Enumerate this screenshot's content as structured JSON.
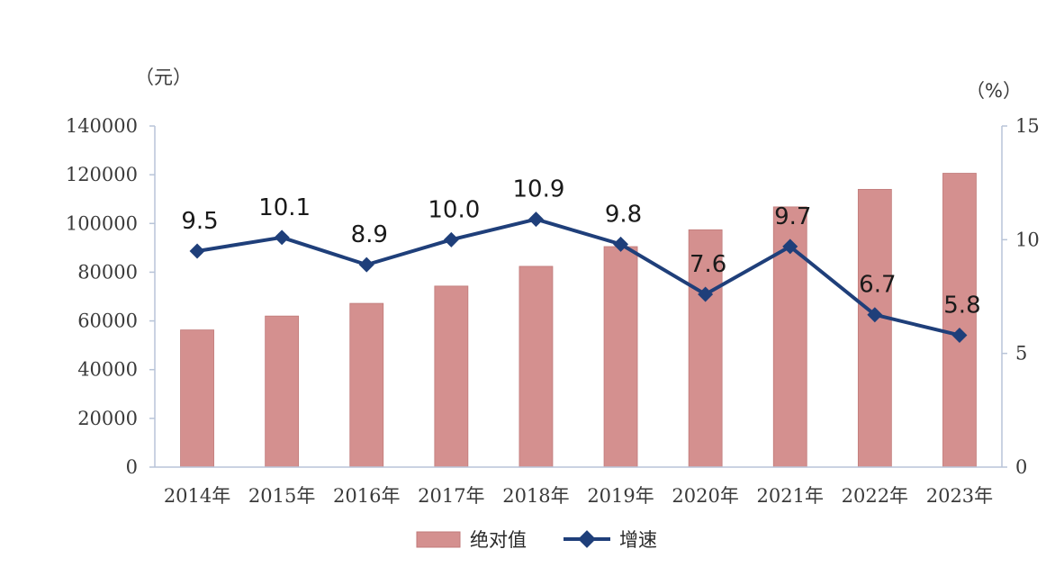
{
  "chart_data": {
    "type": "bar",
    "categories": [
      "2014年",
      "2015年",
      "2016年",
      "2017年",
      "2018年",
      "2019年",
      "2020年",
      "2021年",
      "2022年",
      "2023年"
    ],
    "series": [
      {
        "name": "绝对值",
        "type": "bar",
        "axis": "left",
        "values": [
          56300,
          62000,
          67200,
          74300,
          82400,
          90500,
          97400,
          106800,
          114000,
          120600
        ]
      },
      {
        "name": "增速",
        "type": "line",
        "axis": "right",
        "values": [
          9.5,
          10.1,
          8.9,
          10.0,
          10.9,
          9.8,
          7.6,
          9.7,
          6.7,
          5.8
        ],
        "labels": [
          "9.5",
          "10.1",
          "8.9",
          "10.0",
          "10.9",
          "9.8",
          "7.6",
          "9.7",
          "6.7",
          "5.8"
        ]
      }
    ],
    "y_left": {
      "unit": "（元）",
      "min": 0,
      "max": 140000,
      "ticks": [
        "0",
        "20000",
        "40000",
        "60000",
        "80000",
        "100000",
        "120000",
        "140000"
      ]
    },
    "y_right": {
      "unit": "（%）",
      "min": 0,
      "max": 15,
      "ticks": [
        "0",
        "5",
        "10",
        "15"
      ]
    },
    "legend": {
      "placement": "bottom-center",
      "items": [
        "绝对值",
        "增速"
      ]
    },
    "grid": false,
    "colors": {
      "bar": "#d4908f",
      "bar_edge": "#c07a79",
      "line": "#1f3f7a",
      "axis": "#b8c4d8"
    }
  }
}
